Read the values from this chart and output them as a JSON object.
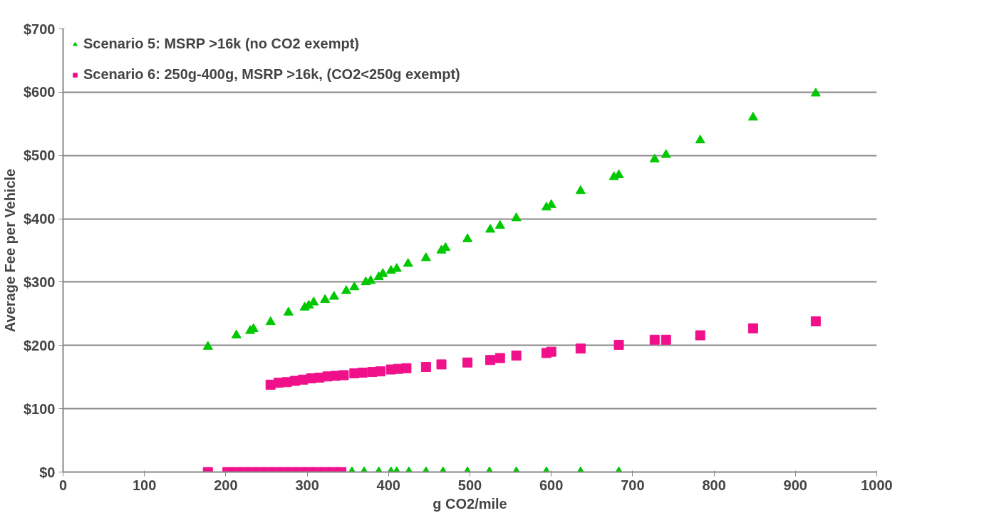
{
  "chart_data": {
    "type": "scatter",
    "xlabel": "g CO2/mile",
    "ylabel": "Average Fee per Vehicle",
    "xlim": [
      0,
      1000
    ],
    "xticks": [
      0,
      100,
      200,
      300,
      400,
      500,
      600,
      700,
      800,
      900,
      1000
    ],
    "ylim": [
      0,
      700
    ],
    "yticks": [
      {
        "value": 0,
        "label": "$0"
      },
      {
        "value": 100,
        "label": "$100"
      },
      {
        "value": 200,
        "label": "$200"
      },
      {
        "value": 300,
        "label": "$300"
      },
      {
        "value": 400,
        "label": "$400"
      },
      {
        "value": 500,
        "label": "$500"
      },
      {
        "value": 600,
        "label": "$600"
      },
      {
        "value": 700,
        "label": "$700"
      }
    ],
    "grid": "y",
    "legend": "top left",
    "series": [
      {
        "name": "Scenario 5: MSRP >16k (no CO2 exempt)",
        "color": "#00c800",
        "marker": "triangle",
        "x": [
          178,
          213,
          230,
          234,
          255,
          277,
          297,
          302,
          308,
          322,
          333,
          348,
          358,
          372,
          378,
          388,
          393,
          403,
          410,
          424,
          446,
          465,
          470,
          497,
          525,
          537,
          557,
          594,
          600,
          636,
          677,
          683,
          727,
          741,
          783,
          848,
          925,
          355,
          370,
          388,
          403,
          410,
          425,
          446,
          467,
          497,
          524,
          557,
          594,
          636,
          683
        ],
        "values": [
          198,
          216,
          223,
          226,
          237,
          252,
          260,
          263,
          268,
          272,
          277,
          286,
          292,
          300,
          302,
          308,
          313,
          318,
          321,
          329,
          338,
          350,
          354,
          368,
          383,
          389,
          401,
          418,
          422,
          444,
          466,
          469,
          494,
          501,
          524,
          560,
          598,
          0,
          0,
          0,
          0,
          0,
          0,
          0,
          0,
          0,
          0,
          0,
          0,
          0,
          0
        ]
      },
      {
        "name": "Scenario 6: 250g-400g, MSRP >16k, (CO2<250g exempt)",
        "color": "#f0108a",
        "marker": "square",
        "x": [
          178,
          202,
          212,
          222,
          232,
          242,
          252,
          262,
          272,
          282,
          292,
          302,
          312,
          322,
          332,
          342,
          255,
          265,
          275,
          285,
          295,
          305,
          315,
          325,
          335,
          345,
          358,
          368,
          380,
          390,
          403,
          412,
          422,
          446,
          465,
          497,
          525,
          537,
          557,
          594,
          600,
          636,
          683,
          727,
          741,
          783,
          848,
          925
        ],
        "values": [
          0,
          0,
          0,
          0,
          0,
          0,
          0,
          0,
          0,
          0,
          0,
          0,
          0,
          0,
          0,
          0,
          138,
          141,
          142,
          144,
          146,
          148,
          149,
          151,
          152,
          153,
          156,
          157,
          158,
          159,
          162,
          163,
          164,
          166,
          170,
          173,
          177,
          180,
          184,
          188,
          190,
          195,
          201,
          209,
          209,
          216,
          227,
          238
        ]
      }
    ]
  }
}
